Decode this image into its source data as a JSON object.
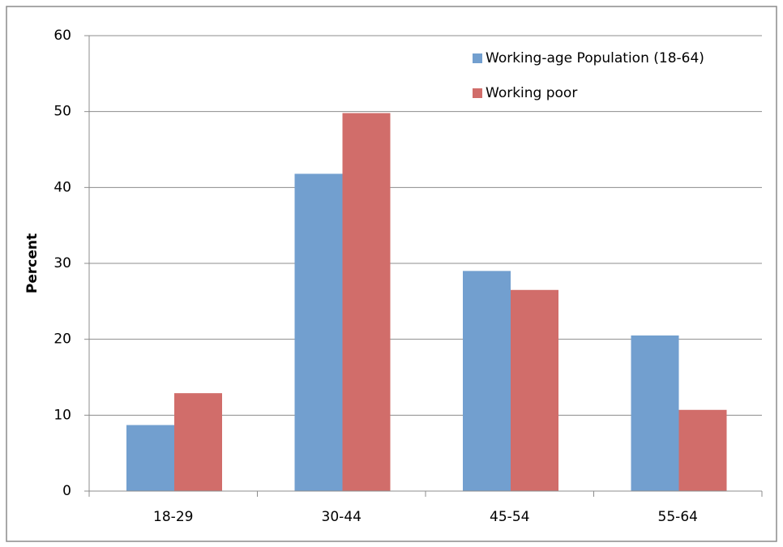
{
  "chart_data": {
    "type": "bar",
    "y_axis_label": "Percent",
    "categories": [
      "18-29",
      "30-44",
      "45-54",
      "55-64"
    ],
    "series": [
      {
        "name": "Working-age Population (18-64)",
        "color": "#729fcf",
        "values": [
          8.7,
          41.8,
          29.0,
          20.5
        ]
      },
      {
        "name": "Working poor",
        "color": "#d16d6a",
        "values": [
          12.9,
          49.8,
          26.5,
          10.7
        ]
      }
    ],
    "ylim": [
      0,
      60
    ],
    "yticks": [
      0,
      10,
      20,
      30,
      40,
      50,
      60
    ],
    "grid": true,
    "legend": "top-right"
  }
}
